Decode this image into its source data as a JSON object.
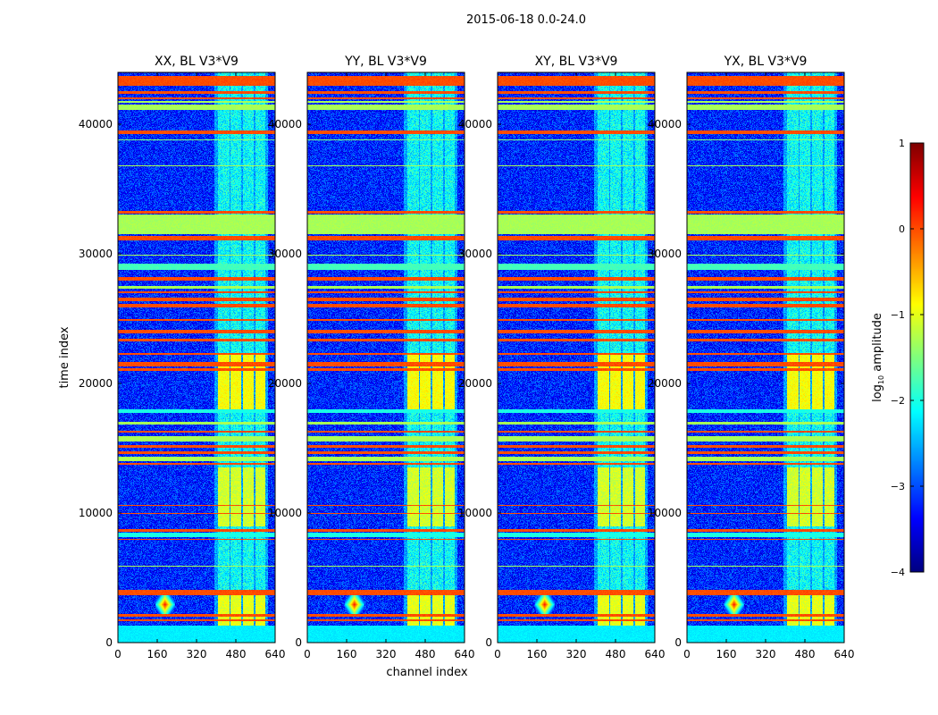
{
  "chart_data": {
    "type": "heatmap",
    "title": "2015-06-18 0.0-24.0",
    "xlabel": "channel index",
    "ylabel": "time index",
    "xlim": [
      0,
      640
    ],
    "ylim": [
      0,
      44000
    ],
    "xticks": [
      "0",
      "160",
      "320",
      "480",
      "640"
    ],
    "yticks": [
      "0",
      "10000",
      "20000",
      "30000",
      "40000"
    ],
    "panels": [
      {
        "title": "XX, BL V3*V9",
        "seed": 11
      },
      {
        "title": "YY, BL V3*V9",
        "seed": 23
      },
      {
        "title": "XY, BL V3*V9",
        "seed": 37
      },
      {
        "title": "YX, BL V3*V9",
        "seed": 51
      }
    ],
    "colorbar": {
      "label": "log10 amplitude",
      "label_main": "log",
      "label_sub": "10",
      "label_rest": " amplitude",
      "colormap": "jet",
      "range": [
        -4,
        1
      ],
      "ticks": [
        "1",
        "0",
        "−1",
        "−2",
        "−3",
        "−4"
      ]
    },
    "background_log_amplitude": -3.2,
    "time_bands": [
      {
        "t0": 42900,
        "t1": 43700,
        "value": 0.0
      },
      {
        "t0": 42300,
        "t1": 42500,
        "value": 0.0
      },
      {
        "t0": 41900,
        "t1": 42050,
        "value": 0.0
      },
      {
        "t0": 41600,
        "t1": 41750,
        "value": -1.3
      },
      {
        "t0": 41050,
        "t1": 41450,
        "value": -1.3
      },
      {
        "t0": 39200,
        "t1": 39450,
        "value": 0.0
      },
      {
        "t0": 38700,
        "t1": 38800,
        "value": -1.5
      },
      {
        "t0": 36700,
        "t1": 36780,
        "value": -1.3
      },
      {
        "t0": 33050,
        "t1": 33250,
        "value": 0.0
      },
      {
        "t0": 31450,
        "t1": 33000,
        "value": -1.3
      },
      {
        "t0": 31000,
        "t1": 31350,
        "value": 0.0
      },
      {
        "t0": 29800,
        "t1": 29900,
        "value": -1.3
      },
      {
        "t0": 28700,
        "t1": 29200,
        "value": -1.8
      },
      {
        "t0": 27900,
        "t1": 28150,
        "value": 0.0
      },
      {
        "t0": 27300,
        "t1": 27500,
        "value": -1.3
      },
      {
        "t0": 26900,
        "t1": 27050,
        "value": 0.0
      },
      {
        "t0": 26300,
        "t1": 26600,
        "value": 0.0
      },
      {
        "t0": 25800,
        "t1": 26100,
        "value": 0.0
      },
      {
        "t0": 24800,
        "t1": 24950,
        "value": 0.0
      },
      {
        "t0": 23800,
        "t1": 24100,
        "value": 0.0
      },
      {
        "t0": 23200,
        "t1": 23400,
        "value": 0.0
      },
      {
        "t0": 22200,
        "t1": 22300,
        "value": 0.0
      },
      {
        "t0": 21300,
        "t1": 21600,
        "value": 0.0
      },
      {
        "t0": 20900,
        "t1": 21150,
        "value": 0.0
      },
      {
        "t0": 17700,
        "t1": 18000,
        "value": -2.0
      },
      {
        "t0": 16800,
        "t1": 17000,
        "value": -1.3
      },
      {
        "t0": 16200,
        "t1": 16300,
        "value": 0.0
      },
      {
        "t0": 15500,
        "t1": 15900,
        "value": -1.3
      },
      {
        "t0": 15000,
        "t1": 15200,
        "value": 0.0
      },
      {
        "t0": 14500,
        "t1": 14700,
        "value": 0.0
      },
      {
        "t0": 14000,
        "t1": 14300,
        "value": -1.3
      },
      {
        "t0": 13700,
        "t1": 13850,
        "value": 0.0
      },
      {
        "t0": 10500,
        "t1": 10560,
        "value": 0.0
      },
      {
        "t0": 9900,
        "t1": 9960,
        "value": 0.0
      },
      {
        "t0": 8500,
        "t1": 8750,
        "value": 0.0
      },
      {
        "t0": 8100,
        "t1": 8450,
        "value": -2.0
      },
      {
        "t0": 7900,
        "t1": 8000,
        "value": 0.0
      },
      {
        "t0": 5800,
        "t1": 5870,
        "value": -1.3
      },
      {
        "t0": 3650,
        "t1": 4050,
        "value": 0.0
      },
      {
        "t0": 2000,
        "t1": 2150,
        "value": 0.0
      },
      {
        "t0": 1650,
        "t1": 1750,
        "value": 0.0
      },
      {
        "t0": 0,
        "t1": 1300,
        "value": -2.2
      }
    ],
    "channel_blocks": [
      {
        "c0": 405,
        "c1": 452
      },
      {
        "c0": 455,
        "c1": 499
      },
      {
        "c0": 506,
        "c1": 550
      },
      {
        "c0": 557,
        "c1": 600
      }
    ],
    "channel_block_level": -2.1,
    "bright_time_ranges": [
      {
        "t0": 18000,
        "t1": 22300,
        "value": -0.9
      },
      {
        "t0": 8900,
        "t1": 13500,
        "value": -1.1
      },
      {
        "t0": 0,
        "t1": 3700,
        "value": -1.0
      }
    ],
    "rfi_spike": {
      "channel": 190,
      "time": 2900,
      "value": 0.3
    }
  }
}
